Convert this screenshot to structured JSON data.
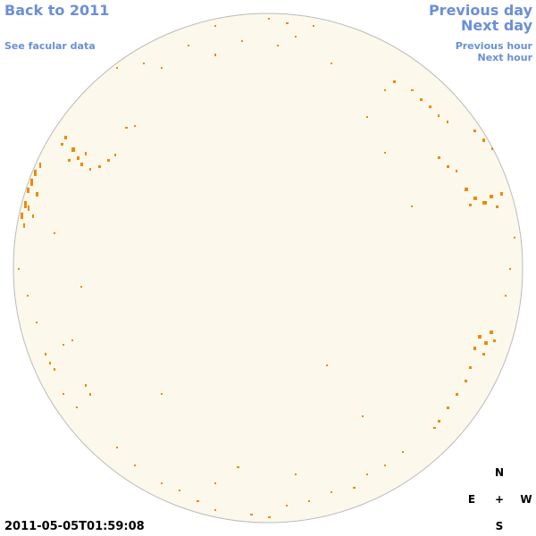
{
  "links": {
    "back": "Back to 2011",
    "facular_data": "See facular data",
    "previous_day": "Previous day",
    "next_day": "Next day",
    "previous_hour": "Previous hour",
    "next_hour": "Next hour"
  },
  "timestamp": "2011-05-05T01:59:08",
  "compass": {
    "north": "N",
    "east": "E",
    "center": "+",
    "west": "W",
    "south": "S"
  }
}
